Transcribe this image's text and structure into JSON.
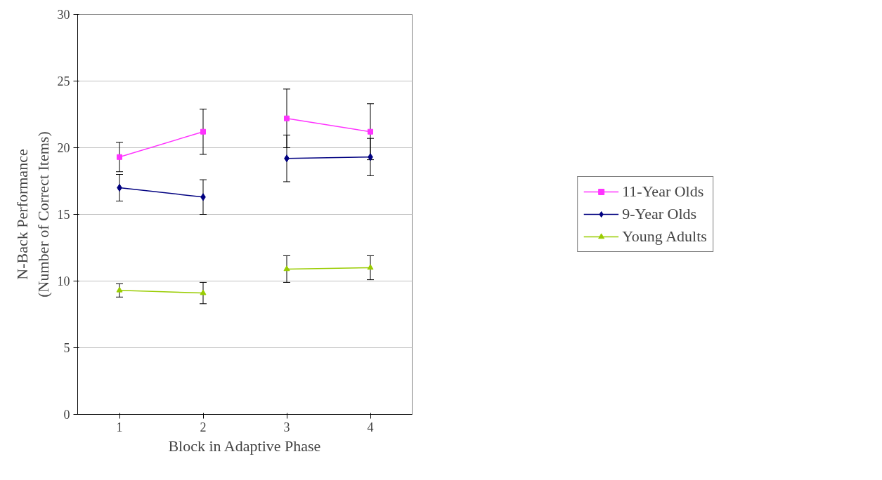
{
  "chart_data": {
    "type": "line",
    "xlabel": "Block in Adaptive Phase",
    "ylabel": "N-Back Performance\n(Number of Correct Items)",
    "xlim": [
      0.5,
      4.5
    ],
    "xticks": [
      1,
      2,
      3,
      4
    ],
    "ylim": [
      0,
      30
    ],
    "yticks": [
      0,
      5,
      10,
      15,
      20,
      25,
      30
    ],
    "grid": "y",
    "legend": "right",
    "x": [
      1,
      2,
      null,
      3,
      4
    ],
    "series": [
      {
        "name": "11-Year Olds",
        "color": "#ff33ff",
        "marker": "square",
        "values": [
          19.3,
          21.2,
          null,
          22.2,
          21.2
        ],
        "errors": [
          1.1,
          1.7,
          null,
          2.2,
          2.1
        ]
      },
      {
        "name": "9-Year Olds",
        "color": "#000080",
        "marker": "diamond",
        "values": [
          17.0,
          16.3,
          null,
          19.2,
          19.3
        ],
        "errors": [
          1.0,
          1.3,
          null,
          1.75,
          1.4
        ]
      },
      {
        "name": "Young Adults",
        "color": "#99cc00",
        "marker": "triangle",
        "values": [
          9.3,
          9.1,
          null,
          10.9,
          11.0
        ],
        "errors": [
          0.5,
          0.8,
          null,
          1.0,
          0.9
        ]
      }
    ]
  }
}
